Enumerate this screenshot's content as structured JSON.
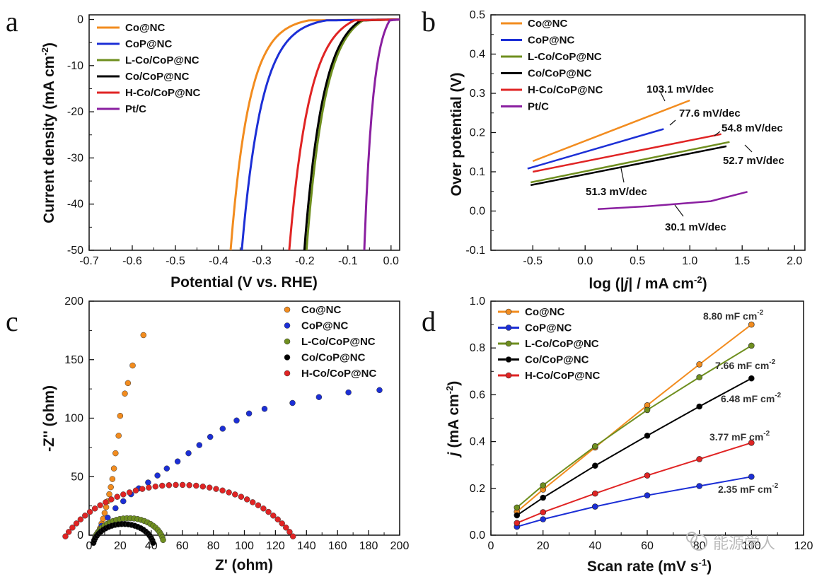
{
  "panel_letters": [
    "a",
    "b",
    "c",
    "d"
  ],
  "watermark": "能源学人",
  "colors": {
    "Co@NC": "#f28c1f",
    "CoP@NC": "#1c2fd6",
    "L-Co/CoP@NC": "#6f8f1f",
    "Co/CoP@NC": "#000000",
    "H-Co/CoP@NC": "#e02424",
    "Pt/C": "#8a1fa0"
  },
  "chart_data": [
    {
      "type": "line",
      "panel": "a",
      "xlabel": "Potential  (V vs. RHE)",
      "ylabel": "Current density (mA cm",
      "ylabel_sup": "-2",
      "ylabel_end": ")",
      "xlim": [
        -0.7,
        0.02
      ],
      "ylim": [
        -50,
        1
      ],
      "xticks": [
        -0.7,
        -0.6,
        -0.5,
        -0.4,
        -0.3,
        -0.2,
        -0.1,
        0.0
      ],
      "xtick_labels": [
        "-0.7",
        "-0.6",
        "-0.5",
        "-0.4",
        "-0.3",
        "-0.2",
        "-0.1",
        "0.0"
      ],
      "yticks": [
        0,
        -10,
        -20,
        -30,
        -40,
        -50
      ],
      "ytick_labels": [
        "0",
        "-10",
        "-20",
        "-30",
        "-40",
        "-50"
      ],
      "legend": [
        "Co@NC",
        "CoP@NC",
        "L-Co/CoP@NC",
        "Co/CoP@NC",
        "H-Co/CoP@NC",
        "Pt/C"
      ],
      "series": [
        {
          "name": "Co@NC",
          "onset": -0.19,
          "end": -0.372,
          "k": 4.2
        },
        {
          "name": "CoP@NC",
          "onset": -0.15,
          "end": -0.346,
          "k": 4.2
        },
        {
          "name": "L-Co/CoP@NC",
          "onset": -0.065,
          "end": -0.196,
          "k": 3.0
        },
        {
          "name": "Co/CoP@NC",
          "onset": -0.07,
          "end": -0.201,
          "k": 3.0
        },
        {
          "name": "H-Co/CoP@NC",
          "onset": -0.085,
          "end": -0.236,
          "k": 3.2
        },
        {
          "name": "Pt/C",
          "onset": -0.003,
          "end": -0.062,
          "k": 2.8
        }
      ]
    },
    {
      "type": "line",
      "panel": "b",
      "xlabel_pre": "log (|",
      "xlabel_j": "j",
      "xlabel_post": "| / mA cm",
      "xlabel_sup": "-2",
      "xlabel_end": ")",
      "ylabel": "Over potential  (V)",
      "xlim": [
        -0.9,
        2.1
      ],
      "ylim": [
        -0.1,
        0.5
      ],
      "xticks": [
        -0.5,
        0.0,
        0.5,
        1.0,
        1.5,
        2.0
      ],
      "xtick_labels": [
        "-0.5",
        "0.0",
        "0.5",
        "1.0",
        "1.5",
        "2.0"
      ],
      "yticks": [
        -0.1,
        0.0,
        0.1,
        0.2,
        0.3,
        0.4,
        0.5
      ],
      "ytick_labels": [
        "-0.1",
        "0.0",
        "0.1",
        "0.2",
        "0.3",
        "0.4",
        "0.5"
      ],
      "legend": [
        "Co@NC",
        "CoP@NC",
        "L-Co/CoP@NC",
        "Co/CoP@NC",
        "H-Co/CoP@NC",
        "Pt/C"
      ],
      "series": [
        {
          "name": "Co@NC",
          "x": [
            -0.5,
            1.0
          ],
          "y": [
            0.127,
            0.282
          ]
        },
        {
          "name": "CoP@NC",
          "x": [
            -0.55,
            0.75
          ],
          "y": [
            0.108,
            0.209
          ]
        },
        {
          "name": "L-Co/CoP@NC",
          "x": [
            -0.52,
            1.38
          ],
          "y": [
            0.073,
            0.176
          ]
        },
        {
          "name": "Co/CoP@NC",
          "x": [
            -0.52,
            1.35
          ],
          "y": [
            0.066,
            0.165
          ]
        },
        {
          "name": "H-Co/CoP@NC",
          "x": [
            -0.5,
            1.3
          ],
          "y": [
            0.1,
            0.196
          ]
        },
        {
          "name": "Pt/C",
          "x": [
            0.12,
            0.6,
            1.2,
            1.55
          ],
          "y": [
            0.005,
            0.012,
            0.025,
            0.049
          ]
        }
      ],
      "annotations": [
        "103.1 mV/dec",
        "77.6 mV/dec",
        "54.8 mV/dec",
        "52.7 mV/dec",
        "51.3 mV/dec",
        "30.1 mV/dec"
      ]
    },
    {
      "type": "scatter",
      "panel": "c",
      "xlabel": "Z' (ohm)",
      "ylabel": "-Z'' (ohm)",
      "xlim": [
        0,
        200
      ],
      "ylim": [
        0,
        200
      ],
      "xticks": [
        0,
        20,
        40,
        60,
        80,
        100,
        120,
        140,
        160,
        180,
        200
      ],
      "xtick_labels": [
        "0",
        "20",
        "40",
        "60",
        "80",
        "100",
        "120",
        "140",
        "160",
        "180",
        "200"
      ],
      "yticks": [
        0,
        50,
        100,
        150,
        200
      ],
      "ytick_labels": [
        "0",
        "50",
        "100",
        "150",
        "200"
      ],
      "legend": [
        "Co@NC",
        "CoP@NC",
        "L-Co/CoP@NC",
        "Co/CoP@NC",
        "H-Co/CoP@NC"
      ],
      "series": [
        {
          "name": "Co@NC",
          "x": [
            5,
            6,
            7,
            8,
            9,
            10,
            11,
            12,
            13,
            14,
            15,
            16,
            17,
            19,
            20,
            23,
            25,
            28,
            35
          ],
          "y": [
            1,
            3,
            6,
            10,
            14,
            19,
            24,
            29,
            35,
            41,
            48,
            57,
            70,
            85,
            102,
            121,
            130,
            145,
            171
          ]
        },
        {
          "name": "CoP@NC",
          "x": [
            5,
            8,
            12,
            17,
            22,
            27,
            32,
            38,
            44,
            50,
            57,
            64,
            71,
            78,
            86,
            95,
            103,
            113,
            131,
            148,
            167,
            187
          ],
          "y": [
            1,
            8,
            15,
            23,
            29,
            35,
            40,
            45,
            51,
            57,
            63,
            70,
            77,
            84,
            91,
            98,
            104,
            108,
            113,
            118,
            122,
            124
          ]
        },
        {
          "name": "L-Co/CoP@NC",
          "cx": 25.5,
          "cy": -8,
          "r": 22.5,
          "theta0": 10,
          "theta1": 170,
          "n": 28
        },
        {
          "name": "Co/CoP@NC",
          "cx": 22,
          "cy": -10,
          "r": 19.5,
          "theta0": 10,
          "theta1": 170,
          "n": 26
        },
        {
          "name": "H-Co/CoP@NC",
          "cx": 58,
          "cy": -40,
          "r": 83,
          "theta0": 28,
          "theta1": 152,
          "n": 42
        }
      ]
    },
    {
      "type": "line",
      "panel": "d",
      "xlabel_main": "Scan rate (mV s",
      "xlabel_sup": "-1",
      "xlabel_end": ")",
      "ylabel_j": "j",
      "ylabel_rest": " (mA cm",
      "ylabel_sup": "-2",
      "ylabel_end": ")",
      "xlim": [
        0,
        120
      ],
      "ylim": [
        0.0,
        1.0
      ],
      "xticks": [
        0,
        20,
        40,
        60,
        80,
        100,
        120
      ],
      "xtick_labels": [
        "0",
        "20",
        "40",
        "60",
        "80",
        "100",
        "120"
      ],
      "yticks": [
        0.0,
        0.2,
        0.4,
        0.6,
        0.8,
        1.0
      ],
      "ytick_labels": [
        "0.0",
        "0.2",
        "0.4",
        "0.6",
        "0.8",
        "1.0"
      ],
      "legend": [
        "Co@NC",
        "CoP@NC",
        "L-Co/CoP@NC",
        "Co/CoP@NC",
        "H-Co/CoP@NC"
      ],
      "x": [
        10,
        20,
        40,
        60,
        80,
        100
      ],
      "series": [
        {
          "name": "Co@NC",
          "values": [
            0.1,
            0.195,
            0.375,
            0.555,
            0.73,
            0.9
          ]
        },
        {
          "name": "CoP@NC",
          "values": [
            0.036,
            0.068,
            0.122,
            0.17,
            0.21,
            0.25
          ]
        },
        {
          "name": "L-Co/CoP@NC",
          "values": [
            0.118,
            0.213,
            0.38,
            0.535,
            0.675,
            0.81
          ]
        },
        {
          "name": "Co/CoP@NC",
          "values": [
            0.085,
            0.16,
            0.297,
            0.425,
            0.55,
            0.67
          ]
        },
        {
          "name": "H-Co/CoP@NC",
          "values": [
            0.052,
            0.098,
            0.178,
            0.255,
            0.325,
            0.395
          ]
        }
      ],
      "annotations": [
        {
          "main": "8.80 mF cm",
          "sup": "-2"
        },
        {
          "main": "7.66 mF cm",
          "sup": "-2"
        },
        {
          "main": "6.48 mF cm",
          "sup": "-2"
        },
        {
          "main": "3.77 mF cm",
          "sup": "-2"
        },
        {
          "main": "2.35 mF cm",
          "sup": "-2"
        }
      ]
    }
  ]
}
